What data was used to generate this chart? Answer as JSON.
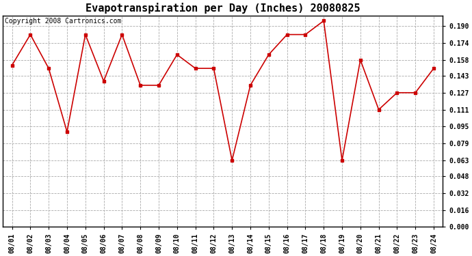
{
  "title": "Evapotranspiration per Day (Inches) 20080825",
  "copyright_text": "Copyright 2008 Cartronics.com",
  "x_labels": [
    "08/01",
    "08/02",
    "08/03",
    "08/04",
    "08/05",
    "08/06",
    "08/07",
    "08/08",
    "08/09",
    "08/10",
    "08/11",
    "08/12",
    "08/13",
    "08/14",
    "08/15",
    "08/16",
    "08/17",
    "08/18",
    "08/19",
    "08/20",
    "08/21",
    "08/22",
    "08/23",
    "08/24"
  ],
  "y_values": [
    0.153,
    0.182,
    0.15,
    0.09,
    0.182,
    0.138,
    0.182,
    0.134,
    0.134,
    0.163,
    0.15,
    0.15,
    0.063,
    0.134,
    0.163,
    0.182,
    0.182,
    0.195,
    0.063,
    0.158,
    0.111,
    0.127,
    0.127,
    0.15
  ],
  "line_color": "#cc0000",
  "marker": "s",
  "marker_size": 3,
  "background_color": "#ffffff",
  "grid_color": "#aaaaaa",
  "ylim_min": 0.0,
  "ylim_max": 0.2,
  "ytick_values": [
    0.0,
    0.016,
    0.032,
    0.048,
    0.063,
    0.079,
    0.095,
    0.111,
    0.127,
    0.143,
    0.158,
    0.174,
    0.19
  ],
  "title_fontsize": 11,
  "tick_fontsize": 7,
  "copyright_fontsize": 7
}
